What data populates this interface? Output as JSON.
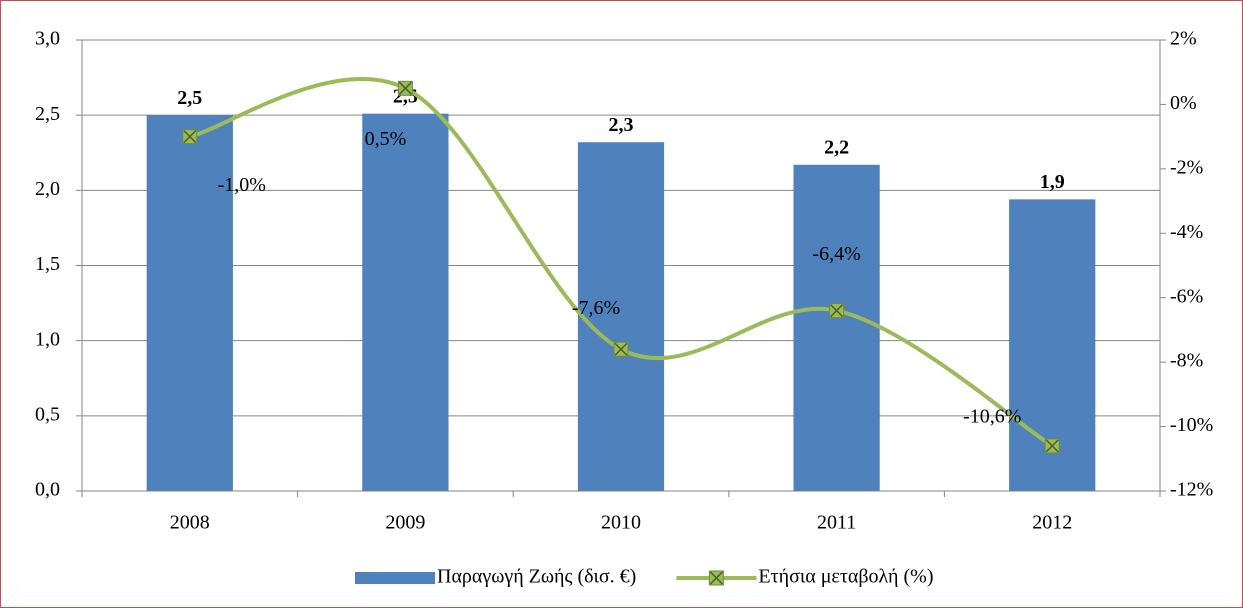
{
  "chart_data": {
    "type": "bar",
    "categories": [
      "2008",
      "2009",
      "2010",
      "2011",
      "2012"
    ],
    "series": [
      {
        "name": "Παραγωγή Ζωής (δισ. €)",
        "type": "bar",
        "color": "#4f81bd",
        "values": [
          2.5,
          2.51,
          2.32,
          2.17,
          1.94
        ],
        "value_labels": [
          "2,5",
          "2,5",
          "2,3",
          "2,2",
          "1,9"
        ]
      },
      {
        "name": "Ετήσια μεταβολή (%)",
        "type": "line",
        "axis": "y2",
        "color": "#9bbb59",
        "values": [
          -1.0,
          0.5,
          -7.6,
          -6.4,
          -10.6
        ],
        "value_labels": [
          "-1,0%",
          "0,5%",
          "-7,6%",
          "-6,4%",
          "-10,6%"
        ]
      }
    ],
    "ylim": [
      0,
      3
    ],
    "yticks": [
      {
        "value": 0,
        "label": "0,0"
      },
      {
        "value": 0.5,
        "label": "0,5"
      },
      {
        "value": 1,
        "label": "1,0"
      },
      {
        "value": 1.5,
        "label": "1,5"
      },
      {
        "value": 2,
        "label": "2,0"
      },
      {
        "value": 2.5,
        "label": "2,5"
      },
      {
        "value": 3,
        "label": "3,0"
      }
    ],
    "y2lim": [
      -12,
      2
    ],
    "y2ticks": [
      {
        "value": -12,
        "label": "-12%"
      },
      {
        "value": -10,
        "label": "-10%"
      },
      {
        "value": -8,
        "label": "-8%"
      },
      {
        "value": -6,
        "label": "-6%"
      },
      {
        "value": -4,
        "label": "-4%"
      },
      {
        "value": -2,
        "label": "-2%"
      },
      {
        "value": 0,
        "label": "0%"
      },
      {
        "value": 2,
        "label": "2%"
      }
    ],
    "grid": true,
    "legend": "bottom"
  }
}
